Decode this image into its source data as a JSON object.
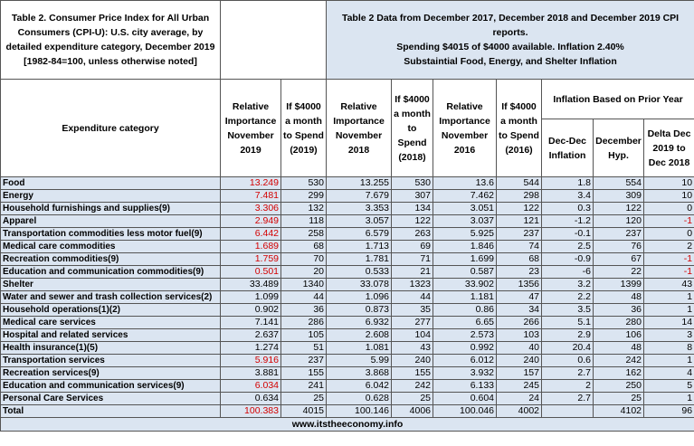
{
  "header": {
    "title": "Table 2. Consumer Price Index for All Urban Consumers (CPI-U): U.S. city average, by detailed expenditure category, December 2019 [1982-84=100, unless otherwise noted]",
    "notes": [
      "Table 2 Data from December 2017,  December 2018 and December 2019  CPI reports.",
      "Spending $4015 of $4000 available. Inflation 2.40%",
      "Substaintial Food, Energy, and Shelter Inflation"
    ]
  },
  "table": {
    "accent_color": "#d40000",
    "columns": [
      "Expenditure category",
      "Relative Importance November 2019",
      "If $4000 a month to Spend (2019)",
      "Relative Importance November 2018",
      "If $4000 a month to Spend (2018)",
      "Relative Importance November 2016",
      "If $4000 a month to Spend (2016)"
    ],
    "group_header": "Inflation Based on Prior Year",
    "group_columns": [
      "Dec-Dec Inflation",
      "December Hyp.",
      "Delta  Dec 2019 to Dec 2018"
    ],
    "rows": [
      {
        "category": "Food",
        "values": [
          13.249,
          530,
          13.255,
          530,
          13.6,
          544,
          1.8,
          554,
          10
        ],
        "accent": true
      },
      {
        "category": "Energy",
        "values": [
          7.481,
          299,
          7.679,
          307,
          7.462,
          298,
          3.4,
          309,
          10
        ],
        "accent": true
      },
      {
        "category": "Household furnishings and supplies(9)",
        "values": [
          3.306,
          132,
          3.353,
          134,
          3.051,
          122,
          0.3,
          122,
          0
        ],
        "accent": true
      },
      {
        "category": "Apparel",
        "values": [
          2.949,
          118,
          3.057,
          122,
          3.037,
          121,
          -1.2,
          120,
          -1
        ],
        "accent": true
      },
      {
        "category": "Transportation commodities less motor fuel(9)",
        "values": [
          6.442,
          258,
          6.579,
          263,
          5.925,
          237,
          -0.1,
          237,
          0
        ],
        "accent": true
      },
      {
        "category": "Medical care commodities",
        "values": [
          1.689,
          68,
          1.713,
          69,
          1.846,
          74,
          2.5,
          76,
          2
        ],
        "accent": true
      },
      {
        "category": "Recreation commodities(9)",
        "values": [
          1.759,
          70,
          1.781,
          71,
          1.699,
          68,
          -0.9,
          67,
          -1
        ],
        "accent": true
      },
      {
        "category": "Education and communication commodities(9)",
        "values": [
          0.501,
          20,
          0.533,
          21,
          0.587,
          23,
          -6,
          22,
          -1
        ],
        "accent": true
      },
      {
        "category": "Shelter",
        "values": [
          33.489,
          1340,
          33.078,
          1323,
          33.902,
          1356,
          3.2,
          1399,
          43
        ]
      },
      {
        "category": "Water and sewer and trash collection services(2)",
        "values": [
          1.099,
          44,
          1.096,
          44,
          1.181,
          47,
          2.2,
          48,
          1
        ]
      },
      {
        "category": "Household operations(1)(2)",
        "values": [
          0.902,
          36,
          0.873,
          35,
          0.86,
          34,
          3.5,
          36,
          1
        ]
      },
      {
        "category": "Medical care services",
        "values": [
          7.141,
          286,
          6.932,
          277,
          6.65,
          266,
          5.1,
          280,
          14
        ]
      },
      {
        "category": "Hospital and related services",
        "values": [
          2.637,
          105,
          2.608,
          104,
          2.573,
          103,
          2.9,
          106,
          3
        ]
      },
      {
        "category": "Health insurance(1)(5)",
        "values": [
          1.274,
          51,
          1.081,
          43,
          0.992,
          40,
          20.4,
          48,
          8
        ]
      },
      {
        "category": "Transportation services",
        "values": [
          5.916,
          237,
          5.99,
          240,
          6.012,
          240,
          0.6,
          242,
          1
        ],
        "accent": true
      },
      {
        "category": "Recreation services(9)",
        "values": [
          3.881,
          155,
          3.868,
          155,
          3.932,
          157,
          2.7,
          162,
          4
        ]
      },
      {
        "category": "Education and communication services(9)",
        "values": [
          6.034,
          241,
          6.042,
          242,
          6.133,
          245,
          2,
          250,
          5
        ],
        "accent": true
      },
      {
        "category": "Personal Care Services",
        "values": [
          0.634,
          25,
          0.628,
          25,
          0.604,
          24,
          2.7,
          25,
          1
        ]
      },
      {
        "category": "Total",
        "values": [
          100.383,
          4015,
          100.146,
          4006,
          100.046,
          4002,
          null,
          4102,
          96
        ],
        "accent": true
      }
    ]
  },
  "footer": "www.itstheeconomy.info"
}
